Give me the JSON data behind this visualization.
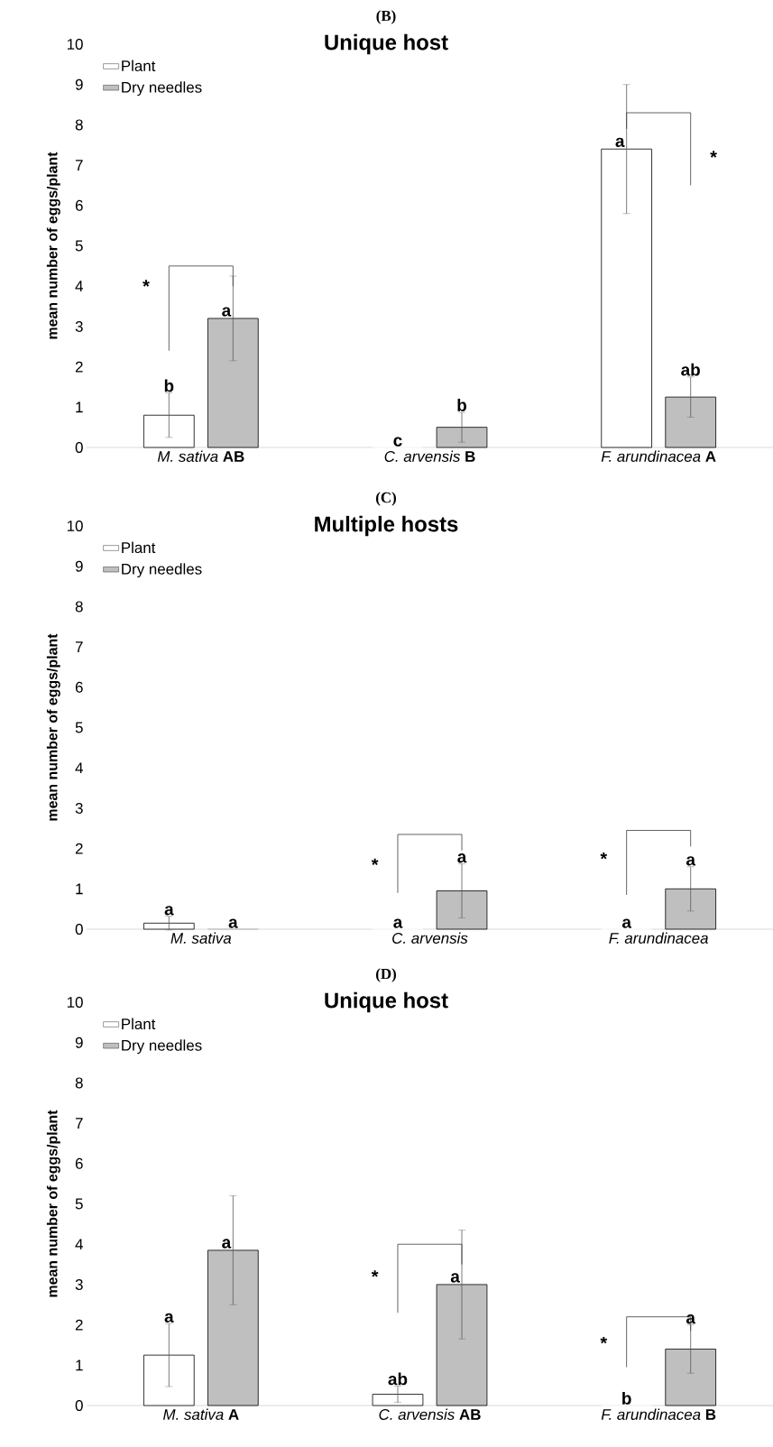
{
  "chart_data": [
    {
      "type": "bar",
      "title": "(B)",
      "subtitle": "Unique host",
      "ylabel": "mean number of eggs/plant",
      "categories": [
        "*M. sativa* **AB**",
        "*C. arvensis* **B**",
        "*F. arundinacea* **A**"
      ],
      "series": [
        {
          "name": "Plant",
          "color": "#ffffff",
          "values": [
            0.8,
            0,
            7.4
          ],
          "errors": [
            0.55,
            null,
            1.6
          ],
          "value_labels": [
            "b",
            "c",
            "a"
          ]
        },
        {
          "name": "Dry needles",
          "color": "#bfbfbf",
          "values": [
            3.2,
            0.5,
            1.25
          ],
          "errors": [
            1.05,
            0.37,
            0.5
          ],
          "value_labels": [
            "a",
            "b",
            "ab"
          ]
        }
      ],
      "annotations": [
        "*",
        "*"
      ],
      "ylim": [
        0,
        10
      ],
      "yticks": [
        0,
        1,
        2,
        3,
        4,
        5,
        6,
        7,
        8,
        9,
        10
      ],
      "legend": "top left"
    },
    {
      "type": "bar",
      "title": "(C)",
      "subtitle": "Multiple hosts",
      "ylabel": "mean number of eggs/plant",
      "categories": [
        "*M. sativa*",
        "*C. arvensis*",
        "*F. arundinacea*"
      ],
      "series": [
        {
          "name": "Plant",
          "color": "#ffffff",
          "values": [
            0.15,
            0,
            0
          ],
          "errors": [
            0.17,
            null,
            null
          ],
          "value_labels": [
            "a",
            "a",
            "a"
          ]
        },
        {
          "name": "Dry needles",
          "color": "#bfbfbf",
          "values": [
            0,
            0.95,
            1.0
          ],
          "errors": [
            null,
            0.67,
            0.55
          ],
          "value_labels": [
            "a",
            "a",
            "a"
          ]
        }
      ],
      "annotations": [
        "*",
        "*"
      ],
      "ylim": [
        0,
        10
      ],
      "yticks": [
        0,
        1,
        2,
        3,
        4,
        5,
        6,
        7,
        8,
        9,
        10
      ],
      "legend": "top left"
    },
    {
      "type": "bar",
      "title": "(D)",
      "subtitle": "Unique host",
      "ylabel": "mean number of eggs/plant",
      "categories": [
        "*M. sativa* **A**",
        "*C. arvensis* **AB**",
        "*F. arundinacea* **B**"
      ],
      "series": [
        {
          "name": "Plant",
          "color": "#ffffff",
          "values": [
            1.25,
            0.28,
            0
          ],
          "errors": [
            0.78,
            0.2,
            null
          ],
          "value_labels": [
            "a",
            "ab",
            "b"
          ]
        },
        {
          "name": "Dry needles",
          "color": "#bfbfbf",
          "values": [
            3.85,
            3.0,
            1.4
          ],
          "errors": [
            1.35,
            1.35,
            0.6
          ],
          "value_labels": [
            "a",
            "a",
            "a"
          ]
        }
      ],
      "annotations": [
        "*",
        "*"
      ],
      "ylim": [
        0,
        10
      ],
      "yticks": [
        0,
        1,
        2,
        3,
        4,
        5,
        6,
        7,
        8,
        9,
        10
      ],
      "legend": "top left"
    }
  ]
}
